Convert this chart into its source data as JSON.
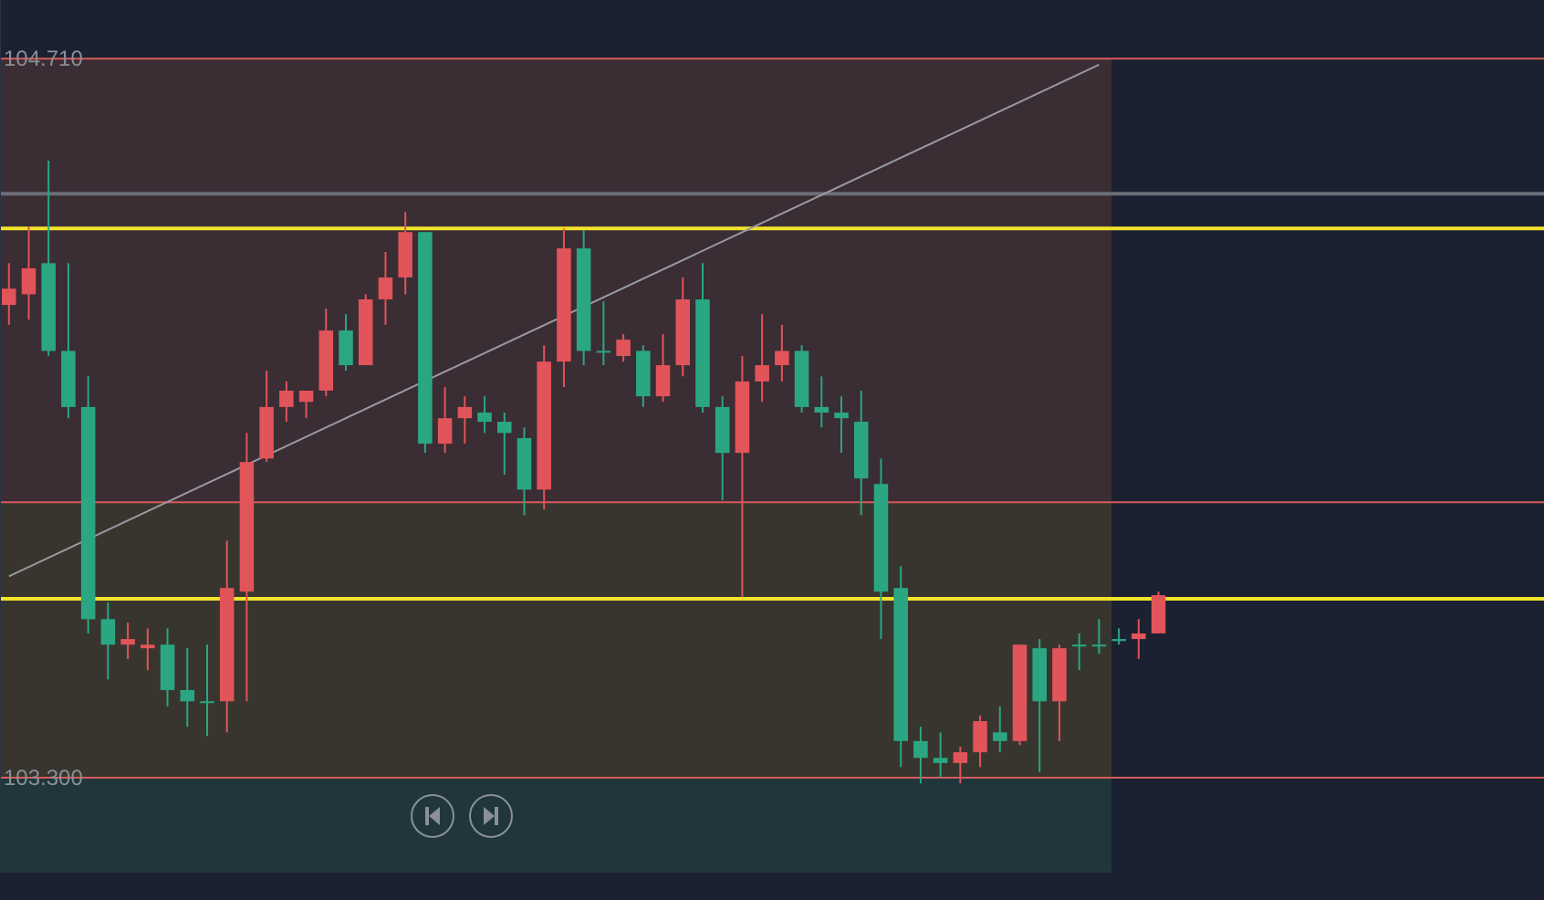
{
  "chart_data": {
    "type": "candlestick",
    "categories": [
      null,
      null,
      null,
      null,
      null,
      null,
      null,
      null,
      null,
      null,
      null,
      null,
      null,
      null,
      null,
      null,
      null,
      null,
      null,
      null,
      null,
      null,
      null,
      null,
      null,
      null,
      null,
      null,
      null,
      null,
      null,
      null,
      null,
      null,
      null,
      null,
      null,
      null,
      null,
      null,
      null,
      null,
      null,
      null,
      null,
      null,
      null,
      null,
      null,
      null,
      null,
      null,
      null,
      null,
      null,
      null,
      null,
      null,
      null,
      null,
      null,
      null,
      null,
      null,
      null,
      null,
      null,
      null,
      null,
      null,
      null,
      null,
      null,
      null,
      null,
      null,
      null,
      null
    ],
    "ohlc": [
      [
        104.227,
        104.309,
        104.188,
        104.259
      ],
      [
        104.248,
        104.381,
        104.198,
        104.299
      ],
      [
        104.309,
        104.51,
        104.127,
        104.137
      ],
      [
        104.137,
        104.309,
        104.005,
        104.027
      ],
      [
        104.027,
        104.087,
        103.583,
        103.611
      ],
      [
        103.611,
        103.644,
        103.493,
        103.561
      ],
      [
        103.561,
        103.604,
        103.533,
        103.572
      ],
      [
        103.554,
        103.593,
        103.511,
        103.561
      ],
      [
        103.561,
        103.593,
        103.44,
        103.472
      ],
      [
        103.472,
        103.554,
        103.4,
        103.45
      ],
      [
        103.45,
        103.561,
        103.382,
        103.447
      ],
      [
        103.45,
        103.765,
        103.389,
        103.672
      ],
      [
        103.665,
        103.976,
        103.45,
        103.919
      ],
      [
        103.926,
        104.098,
        103.919,
        104.027
      ],
      [
        104.027,
        104.077,
        103.998,
        104.059
      ],
      [
        104.037,
        104.059,
        104.005,
        104.059
      ],
      [
        104.059,
        104.22,
        104.048,
        104.177
      ],
      [
        104.177,
        104.209,
        104.098,
        104.109
      ],
      [
        104.109,
        104.248,
        104.109,
        104.238
      ],
      [
        104.238,
        104.331,
        104.188,
        104.281
      ],
      [
        104.281,
        104.409,
        104.248,
        104.37
      ],
      [
        104.37,
        104.37,
        103.937,
        103.955
      ],
      [
        103.955,
        104.066,
        103.937,
        104.005
      ],
      [
        104.005,
        104.048,
        103.955,
        104.027
      ],
      [
        104.016,
        104.048,
        103.976,
        103.998
      ],
      [
        103.998,
        104.016,
        103.894,
        103.976
      ],
      [
        103.966,
        103.987,
        103.815,
        103.865
      ],
      [
        103.865,
        104.148,
        103.826,
        104.116
      ],
      [
        104.116,
        104.377,
        104.066,
        104.338
      ],
      [
        104.338,
        104.374,
        104.109,
        104.137
      ],
      [
        104.137,
        104.234,
        104.109,
        104.134
      ],
      [
        104.127,
        104.17,
        104.116,
        104.159
      ],
      [
        104.137,
        104.148,
        104.027,
        104.048
      ],
      [
        104.048,
        104.17,
        104.037,
        104.109
      ],
      [
        104.109,
        104.281,
        104.087,
        104.238
      ],
      [
        104.238,
        104.309,
        104.016,
        104.027
      ],
      [
        104.027,
        104.048,
        103.844,
        103.937
      ],
      [
        103.937,
        104.127,
        103.654,
        104.077
      ],
      [
        104.077,
        104.209,
        104.037,
        104.109
      ],
      [
        104.109,
        104.188,
        104.077,
        104.137
      ],
      [
        104.137,
        104.148,
        104.016,
        104.027
      ],
      [
        104.027,
        104.087,
        103.987,
        104.016
      ],
      [
        104.016,
        104.048,
        103.937,
        104.005
      ],
      [
        103.998,
        104.059,
        103.815,
        103.887
      ],
      [
        103.876,
        103.926,
        103.572,
        103.665
      ],
      [
        103.672,
        103.715,
        103.321,
        103.372
      ],
      [
        103.372,
        103.4,
        103.289,
        103.339
      ],
      [
        103.339,
        103.389,
        103.3,
        103.329
      ],
      [
        103.329,
        103.361,
        103.289,
        103.35
      ],
      [
        103.35,
        103.422,
        103.321,
        103.411
      ],
      [
        103.389,
        103.44,
        103.35,
        103.372
      ],
      [
        103.372,
        103.561,
        103.364,
        103.561
      ],
      [
        103.554,
        103.572,
        103.311,
        103.45
      ],
      [
        103.45,
        103.561,
        103.372,
        103.554
      ],
      [
        103.561,
        103.583,
        103.511,
        103.558
      ],
      [
        103.561,
        103.611,
        103.543,
        103.558
      ],
      [
        103.572,
        103.593,
        103.561,
        103.568
      ],
      [
        103.572,
        103.611,
        103.533,
        103.583
      ],
      [
        103.583,
        103.665,
        103.583,
        103.658
      ],
      null,
      null,
      null,
      null,
      null,
      null,
      null,
      null,
      null,
      null,
      null,
      null,
      null,
      null,
      null,
      null,
      null,
      null,
      null
    ],
    "colors": [
      "#e0545a",
      "#e0545a",
      "#2aa782",
      "#2aa782",
      "#2aa782",
      "#2aa782",
      "#e0545a",
      "#e0545a",
      "#2aa782",
      "#2aa782",
      "#2aa782",
      "#e0545a",
      "#e0545a",
      "#e0545a",
      "#e0545a",
      "#e0545a",
      "#e0545a",
      "#2aa782",
      "#e0545a",
      "#e0545a",
      "#e0545a",
      "#2aa782",
      "#e0545a",
      "#e0545a",
      "#2aa782",
      "#2aa782",
      "#2aa782",
      "#e0545a",
      "#e0545a",
      "#2aa782",
      "#2aa782",
      "#e0545a",
      "#2aa782",
      "#e0545a",
      "#e0545a",
      "#2aa782",
      "#2aa782",
      "#e0545a",
      "#e0545a",
      "#e0545a",
      "#2aa782",
      "#2aa782",
      "#2aa782",
      "#2aa782",
      "#2aa782",
      "#2aa782",
      "#2aa782",
      "#2aa782",
      "#e0545a",
      "#e0545a",
      "#2aa782",
      "#e0545a",
      "#2aa782",
      "#e0545a",
      "#2aa782",
      "#2aa782",
      "#2aa782",
      "#e0545a",
      "#e0545a",
      null,
      null,
      null,
      null,
      null,
      null,
      null,
      null,
      null,
      null,
      null,
      null,
      null,
      null,
      null,
      null,
      null,
      null,
      null
    ],
    "series": [
      {
        "type": "line",
        "color": "#9a9aa0",
        "values": [
          103.695,
          null,
          null,
          null,
          null,
          null,
          null,
          null,
          null,
          null,
          null,
          null,
          null,
          null,
          null,
          null,
          null,
          null,
          null,
          null,
          null,
          null,
          null,
          null,
          null,
          null,
          null,
          null,
          null,
          null,
          null,
          null,
          null,
          null,
          null,
          null,
          null,
          null,
          null,
          null,
          null,
          null,
          null,
          null,
          null,
          null,
          null,
          null,
          null,
          null,
          null,
          null,
          null,
          null,
          null,
          104.698,
          null,
          null,
          null,
          null,
          null,
          null,
          null,
          null,
          null,
          null,
          null,
          null,
          null,
          null,
          null,
          null,
          null,
          null,
          null,
          null,
          null,
          null
        ]
      }
    ],
    "ylim": [
      103.114,
      104.825
    ],
    "yticks": [
      {
        "value": 103.3,
        "label": "103.300"
      },
      {
        "value": 104.71,
        "label": "104.710"
      }
    ],
    "tick_labels": "y",
    "bands": [
      {
        "axis": "y",
        "from": 103.84,
        "to": 104.71,
        "color": "#3a2d33"
      },
      {
        "axis": "y",
        "from": 103.3,
        "to": 103.84,
        "color": "#38352f"
      },
      {
        "axis": "y",
        "from": 103.114,
        "to": 103.3,
        "color": "#20363b"
      }
    ],
    "ref_lines": [
      {
        "axis": "y",
        "value": 104.71,
        "color": "#d85a5a"
      },
      {
        "axis": "y",
        "value": 103.84,
        "color": "#d85a5a"
      },
      {
        "axis": "y",
        "value": 103.3,
        "color": "#d85a5a"
      },
      {
        "axis": "y",
        "value": 104.445,
        "color": "#6b6e78"
      },
      {
        "axis": "y",
        "value": 104.377,
        "color": "#f2e32a"
      },
      {
        "axis": "y",
        "value": 103.651,
        "color": "#f2e32a"
      }
    ]
  }
}
